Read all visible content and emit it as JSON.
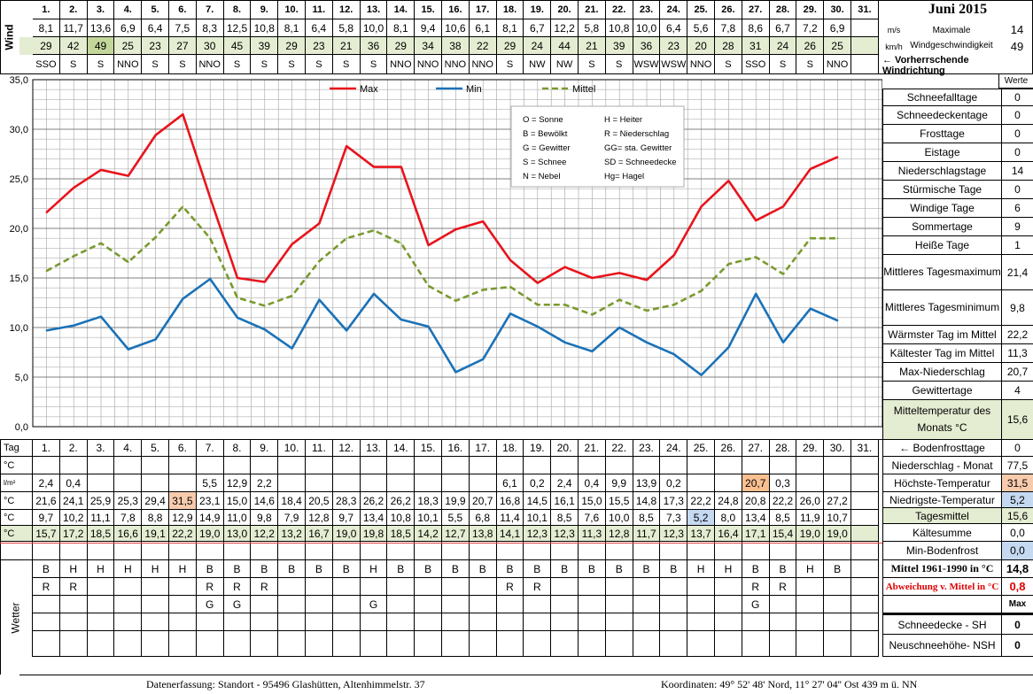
{
  "header": {
    "title": "Juni 2015",
    "wind_side_label": "Wind",
    "wetter_side_label": "Wetter",
    "ms_unit": "m/s",
    "kmh_unit": "km/h",
    "max_wind_label": "Maximale Windgeschwindigkeit",
    "max_wind_ms": "14",
    "max_wind_kmh": "49",
    "direction_label": "← Vorherrschende Windrichtung",
    "werte_label": "Werte"
  },
  "days": [
    "1.",
    "2.",
    "3.",
    "4.",
    "5.",
    "6.",
    "7.",
    "8.",
    "9.",
    "10.",
    "11.",
    "12.",
    "13.",
    "14.",
    "15.",
    "16.",
    "17.",
    "18.",
    "19.",
    "20.",
    "21.",
    "22.",
    "23.",
    "24.",
    "25.",
    "26.",
    "27.",
    "28.",
    "29.",
    "30.",
    "31."
  ],
  "wind": {
    "ms": [
      "8,1",
      "11,7",
      "13,6",
      "6,9",
      "6,4",
      "7,5",
      "8,3",
      "12,5",
      "10,8",
      "8,1",
      "6,4",
      "5,8",
      "10,0",
      "8,1",
      "9,4",
      "10,6",
      "6,1",
      "8,1",
      "6,7",
      "12,2",
      "5,8",
      "10,8",
      "10,0",
      "6,4",
      "5,6",
      "7,8",
      "8,6",
      "6,7",
      "7,2",
      "6,9",
      ""
    ],
    "kmh": [
      "29",
      "42",
      "49",
      "25",
      "23",
      "27",
      "30",
      "45",
      "39",
      "29",
      "23",
      "21",
      "36",
      "29",
      "34",
      "38",
      "22",
      "29",
      "24",
      "44",
      "21",
      "39",
      "36",
      "23",
      "20",
      "28",
      "31",
      "24",
      "26",
      "25",
      ""
    ],
    "dir": [
      "SSO",
      "S",
      "S",
      "NNO",
      "S",
      "S",
      "NNO",
      "S",
      "S",
      "S",
      "S",
      "S",
      "S",
      "NNO",
      "NNO",
      "NNO",
      "NNO",
      "S",
      "NW",
      "NW",
      "S",
      "S",
      "WSW",
      "WSW",
      "NNO",
      "S",
      "SSO",
      "S",
      "S",
      "NNO",
      ""
    ]
  },
  "chart_data": {
    "type": "line",
    "x": [
      1,
      2,
      3,
      4,
      5,
      6,
      7,
      8,
      9,
      10,
      11,
      12,
      13,
      14,
      15,
      16,
      17,
      18,
      19,
      20,
      21,
      22,
      23,
      24,
      25,
      26,
      27,
      28,
      29,
      30
    ],
    "ylim": [
      0,
      35
    ],
    "yticks": [
      "0,0",
      "5,0",
      "10,0",
      "15,0",
      "20,0",
      "25,0",
      "30,0",
      "35,0"
    ],
    "grid": true,
    "legend_position": "top",
    "series": [
      {
        "name": "Max",
        "color": "#e8141c",
        "style": "solid",
        "values": [
          21.6,
          24.1,
          25.9,
          25.3,
          29.4,
          31.5,
          23.1,
          15.0,
          14.6,
          18.4,
          20.5,
          28.3,
          26.2,
          26.2,
          18.3,
          19.9,
          20.7,
          16.8,
          14.5,
          16.1,
          15.0,
          15.5,
          14.8,
          17.3,
          22.2,
          24.8,
          20.8,
          22.2,
          26.0,
          27.2
        ]
      },
      {
        "name": "Min",
        "color": "#1a72b8",
        "style": "solid",
        "values": [
          9.7,
          10.2,
          11.1,
          7.8,
          8.8,
          12.9,
          14.9,
          11.0,
          9.8,
          7.9,
          12.8,
          9.7,
          13.4,
          10.8,
          10.1,
          5.5,
          6.8,
          11.4,
          10.1,
          8.5,
          7.6,
          10.0,
          8.5,
          7.3,
          5.2,
          8.0,
          13.4,
          8.5,
          11.9,
          10.7
        ]
      },
      {
        "name": "Mittel",
        "color": "#7a9a2e",
        "style": "dashed",
        "values": [
          15.7,
          17.2,
          18.5,
          16.6,
          19.1,
          22.2,
          19.0,
          13.0,
          12.2,
          13.2,
          16.7,
          19.0,
          19.8,
          18.5,
          14.2,
          12.7,
          13.8,
          14.1,
          12.3,
          12.3,
          11.3,
          12.8,
          11.7,
          12.3,
          13.7,
          16.4,
          17.1,
          15.4,
          19.0,
          19.0
        ]
      }
    ]
  },
  "legend_box": [
    [
      "O = Sonne",
      "H = Heiter"
    ],
    [
      "B = Bewölkt",
      "R = Niederschlag"
    ],
    [
      "G = Gewitter",
      "GG= sta. Gewitter"
    ],
    [
      "S = Schnee",
      "SD = Schneedecke"
    ],
    [
      "N = Nebel",
      "Hg= Hagel"
    ]
  ],
  "stats": [
    {
      "label": "Schneefalltage",
      "value": "0"
    },
    {
      "label": "Schneedeckentage",
      "value": "0"
    },
    {
      "label": "Frosttage",
      "value": "0"
    },
    {
      "label": "Eistage",
      "value": "0"
    },
    {
      "label": "Niederschlagstage",
      "value": "14"
    },
    {
      "label": "Stürmische Tage",
      "value": "0"
    },
    {
      "label": "Windige Tage",
      "value": "6"
    },
    {
      "label": "Sommertage",
      "value": "9"
    },
    {
      "label": "Heiße Tage",
      "value": "1"
    },
    {
      "label": "Mittleres Tagesmaximum",
      "value": "21,4"
    },
    {
      "label": "Mittleres Tagesminimum",
      "value": "9,8"
    },
    {
      "label": "Wärmster Tag im Mittel",
      "value": "22,2"
    },
    {
      "label": "Kältester Tag im Mittel",
      "value": "11,3"
    },
    {
      "label": "Max-Niederschlag",
      "value": "20,7"
    },
    {
      "label": "Gewittertage",
      "value": "4"
    },
    {
      "label": "Mitteltemperatur des Monats °C",
      "value": "15,6"
    }
  ],
  "table": {
    "tag_label": "Tag",
    "units": [
      "°C",
      "l/m²",
      "°C",
      "°C",
      "°C"
    ],
    "bodenfrost": [],
    "niederschlag": [
      "2,4",
      "0,4",
      "",
      "",
      "",
      "",
      "5,5",
      "12,9",
      "2,2",
      "",
      "",
      "",
      "",
      "",
      "",
      "",
      "",
      "6,1",
      "0,2",
      "2,4",
      "0,4",
      "9,9",
      "13,9",
      "0,2",
      "",
      "",
      "20,7",
      "0,3",
      "",
      "",
      ""
    ],
    "hoechst": [
      "21,6",
      "24,1",
      "25,9",
      "25,3",
      "29,4",
      "31,5",
      "23,1",
      "15,0",
      "14,6",
      "18,4",
      "20,5",
      "28,3",
      "26,2",
      "26,2",
      "18,3",
      "19,9",
      "20,7",
      "16,8",
      "14,5",
      "16,1",
      "15,0",
      "15,5",
      "14,8",
      "17,3",
      "22,2",
      "24,8",
      "20,8",
      "22,2",
      "26,0",
      "27,2",
      ""
    ],
    "niedrigst": [
      "9,7",
      "10,2",
      "11,1",
      "7,8",
      "8,8",
      "12,9",
      "14,9",
      "11,0",
      "9,8",
      "7,9",
      "12,8",
      "9,7",
      "13,4",
      "10,8",
      "10,1",
      "5,5",
      "6,8",
      "11,4",
      "10,1",
      "8,5",
      "7,6",
      "10,0",
      "8,5",
      "7,3",
      "5,2",
      "8,0",
      "13,4",
      "8,5",
      "11,9",
      "10,7",
      ""
    ],
    "mittel": [
      "15,7",
      "17,2",
      "18,5",
      "16,6",
      "19,1",
      "22,2",
      "19,0",
      "13,0",
      "12,2",
      "13,2",
      "16,7",
      "19,0",
      "19,8",
      "18,5",
      "14,2",
      "12,7",
      "13,8",
      "14,1",
      "12,3",
      "12,3",
      "11,3",
      "12,8",
      "11,7",
      "12,3",
      "13,7",
      "16,4",
      "17,1",
      "15,4",
      "19,0",
      "19,0",
      ""
    ],
    "wetter1": [
      "B",
      "H",
      "H",
      "H",
      "H",
      "H",
      "B",
      "B",
      "B",
      "B",
      "B",
      "B",
      "H",
      "B",
      "B",
      "B",
      "B",
      "B",
      "B",
      "B",
      "B",
      "B",
      "B",
      "B",
      "H",
      "H",
      "B",
      "B",
      "H",
      "B",
      ""
    ],
    "wetter2": [
      "R",
      "R",
      "",
      "",
      "",
      "",
      "R",
      "R",
      "R",
      "",
      "",
      "",
      "",
      "",
      "",
      "",
      "",
      "R",
      "R",
      "",
      "",
      "",
      "",
      "",
      "",
      "",
      "R",
      "R",
      "",
      "",
      ""
    ],
    "wetter3": [
      "",
      "",
      "",
      "",
      "",
      "",
      "G",
      "G",
      "",
      "",
      "",
      "",
      "G",
      "",
      "",
      "",
      "",
      "",
      "",
      "",
      "",
      "",
      "",
      "",
      "",
      "",
      "G",
      "",
      "",
      "",
      ""
    ]
  },
  "right_table": [
    {
      "label": "← Bodenfrosttage",
      "value": "0"
    },
    {
      "label": "Niederschlag - Monat",
      "value": "77,5"
    },
    {
      "label": "Höchste-Temperatur",
      "value": "31,5"
    },
    {
      "label": "Niedrigste-Temperatur",
      "value": "5,2"
    },
    {
      "label": "Tagesmittel",
      "value": "15,6"
    },
    {
      "label": "Kältesumme",
      "value": "0,0"
    },
    {
      "label": "Min-Bodenfrost",
      "value": "0,0"
    },
    {
      "label": "Mittel 1961-1990 in °C",
      "value": "14,8"
    },
    {
      "label": "Abweichung v. Mittel in °C",
      "value": "0,8"
    },
    {
      "label": "",
      "value": "Max"
    },
    {
      "label": "Schneedecke -  SH",
      "value": "0"
    },
    {
      "label": "Neuschneehöhe- NSH",
      "value": "0"
    }
  ],
  "footer": {
    "left": "Datenerfassung:  Standort -  95496  Glashütten, Altenhimmelstr. 37",
    "right": "Koordinaten:  49° 52' 48' Nord,   11° 27' 04'' Ost   439 m ü. NN"
  },
  "colors": {
    "max": "#e8141c",
    "min": "#1a72b8",
    "mittel": "#7a9a2e",
    "green_cell": "#e4ecd2",
    "highlight_max": "#f8cbad",
    "highlight_min": "#c5d9f1",
    "highlight_peak": "#fac090"
  }
}
